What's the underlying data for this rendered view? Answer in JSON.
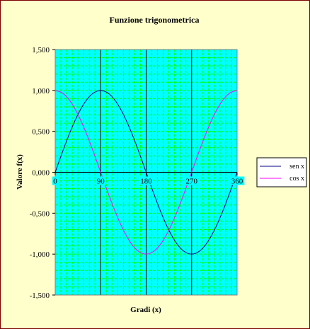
{
  "chart_data": {
    "type": "line",
    "title": "Funzione trigonometrica",
    "xlabel": "Gradi (x)",
    "ylabel": "Valore f(x)",
    "xlim": [
      0,
      360
    ],
    "ylim": [
      -1.5,
      1.5
    ],
    "x_ticks": [
      0,
      90,
      180,
      270,
      360
    ],
    "x_tick_labels": [
      "0",
      "90",
      "180",
      "270",
      "360"
    ],
    "y_ticks": [
      1.5,
      1.0,
      0.5,
      0.0,
      -0.5,
      -1.0,
      -1.5
    ],
    "y_tick_labels": [
      "1,500",
      "1,000",
      "0,500",
      "0,000",
      "-0,500",
      "-1,000",
      "-1,500"
    ],
    "grid": true,
    "legend_position": "right",
    "x": [
      0,
      15,
      30,
      45,
      60,
      75,
      90,
      105,
      120,
      135,
      150,
      165,
      180,
      195,
      210,
      225,
      240,
      255,
      270,
      285,
      300,
      315,
      330,
      345,
      360
    ],
    "series": [
      {
        "name": "sen x",
        "color": "#000080",
        "values": [
          0,
          0.259,
          0.5,
          0.707,
          0.866,
          0.966,
          1,
          0.966,
          0.866,
          0.707,
          0.5,
          0.259,
          0,
          -0.259,
          -0.5,
          -0.707,
          -0.866,
          -0.966,
          -1,
          -0.966,
          -0.866,
          -0.707,
          -0.5,
          -0.259,
          0
        ]
      },
      {
        "name": "cos x",
        "color": "#ff00ff",
        "values": [
          1,
          0.966,
          0.866,
          0.707,
          0.5,
          0.259,
          0,
          -0.259,
          -0.5,
          -0.707,
          -0.866,
          -0.966,
          -1,
          -0.966,
          -0.866,
          -0.707,
          -0.5,
          -0.259,
          0,
          0.259,
          0.5,
          0.707,
          0.866,
          0.966,
          1
        ]
      }
    ],
    "colors": {
      "plot_background": "#00ffff",
      "gridline": "#00ff00",
      "page_background": "#ffffcc"
    }
  }
}
